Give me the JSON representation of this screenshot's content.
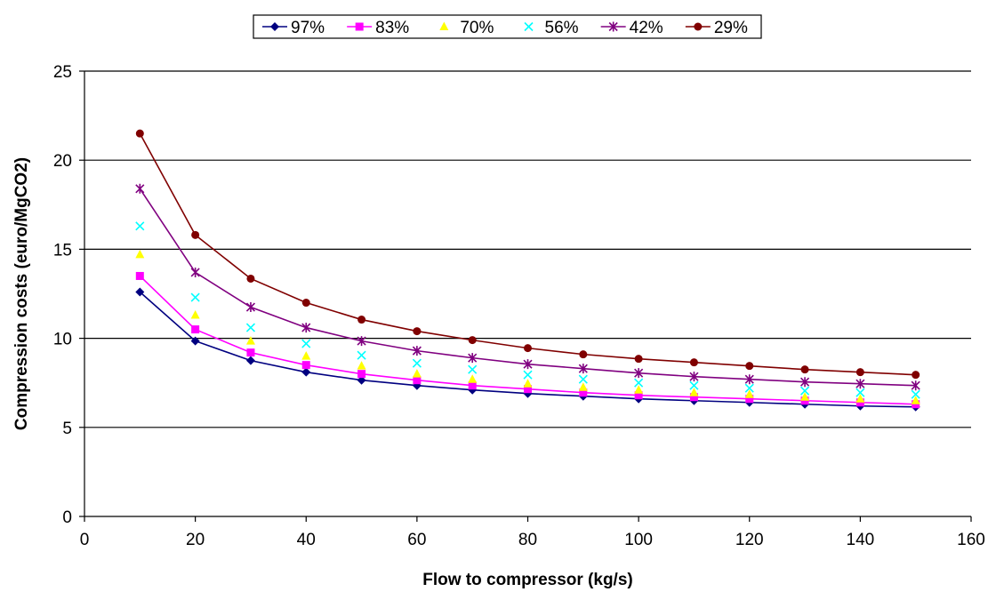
{
  "chart_data": {
    "type": "line",
    "xlabel": "Flow to compressor (kg/s)",
    "ylabel": "Compression costs (euro/MgCO2)",
    "xlim": [
      0,
      160
    ],
    "ylim": [
      0,
      25
    ],
    "x_ticks": [
      "0",
      "20",
      "40",
      "60",
      "80",
      "100",
      "120",
      "140",
      "160"
    ],
    "y_ticks": [
      "0",
      "5",
      "10",
      "15",
      "20",
      "25"
    ],
    "grid": "horizontal",
    "legend_position": "top",
    "x": [
      10,
      20,
      30,
      40,
      50,
      60,
      70,
      80,
      90,
      100,
      110,
      120,
      130,
      140,
      150
    ],
    "series": [
      {
        "name": "97%",
        "color": "#000080",
        "marker": "diamond",
        "line": true,
        "values": [
          12.6,
          9.85,
          8.75,
          8.1,
          7.65,
          7.35,
          7.1,
          6.9,
          6.75,
          6.6,
          6.5,
          6.4,
          6.3,
          6.2,
          6.15
        ]
      },
      {
        "name": "83%",
        "color": "#ff00ff",
        "marker": "square",
        "line": true,
        "values": [
          13.5,
          10.5,
          9.2,
          8.5,
          8.0,
          7.65,
          7.35,
          7.15,
          6.95,
          6.8,
          6.7,
          6.6,
          6.5,
          6.4,
          6.3
        ]
      },
      {
        "name": "70%",
        "color": "#ffff00",
        "marker": "triangle",
        "line": false,
        "values": [
          14.7,
          11.3,
          9.85,
          9.0,
          8.45,
          8.0,
          7.7,
          7.45,
          7.25,
          7.1,
          6.95,
          6.85,
          6.7,
          6.6,
          6.5
        ]
      },
      {
        "name": "56%",
        "color": "#00ffff",
        "marker": "x",
        "line": false,
        "values": [
          16.3,
          12.3,
          10.6,
          9.7,
          9.05,
          8.6,
          8.25,
          7.95,
          7.7,
          7.5,
          7.35,
          7.2,
          7.05,
          6.95,
          6.85
        ]
      },
      {
        "name": "42%",
        "color": "#800080",
        "marker": "star",
        "line": true,
        "values": [
          18.4,
          13.7,
          11.75,
          10.6,
          9.85,
          9.3,
          8.9,
          8.55,
          8.3,
          8.05,
          7.85,
          7.7,
          7.55,
          7.45,
          7.35
        ]
      },
      {
        "name": "29%",
        "color": "#800000",
        "marker": "circle",
        "line": true,
        "values": [
          21.5,
          15.8,
          13.35,
          12.0,
          11.05,
          10.4,
          9.9,
          9.45,
          9.1,
          8.85,
          8.65,
          8.45,
          8.25,
          8.1,
          7.95
        ]
      }
    ]
  }
}
